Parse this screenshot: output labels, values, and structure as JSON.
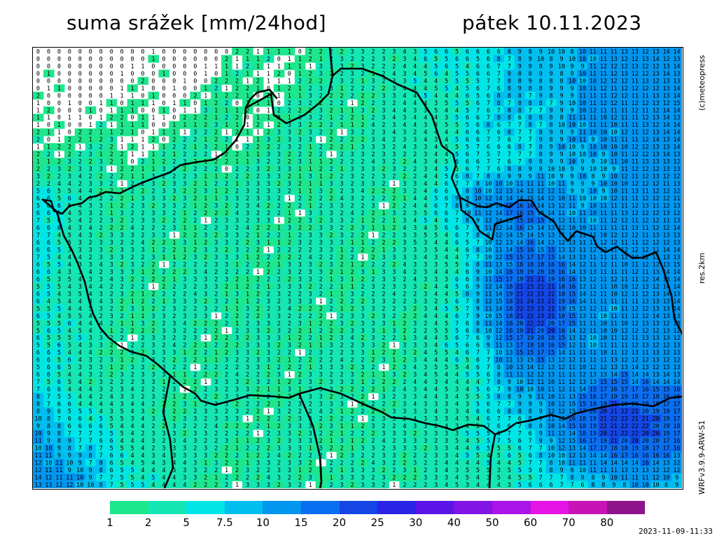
{
  "header": {
    "title": "suma srážek [mm/24hod]",
    "date": "pátek 10.11.2023"
  },
  "side_labels": {
    "copyright": "(c)meteopress",
    "resolution": "res.2km",
    "model": "WRFv3.9.9-ARW-S1"
  },
  "legend": {
    "labels": [
      "1",
      "2",
      "5",
      "7.5",
      "10",
      "15",
      "20",
      "25",
      "30",
      "40",
      "50",
      "60",
      "70",
      "80"
    ],
    "colors": [
      "#1ee68c",
      "#14e6b4",
      "#00e6e6",
      "#00bef0",
      "#0096f0",
      "#0a6ef0",
      "#1446e6",
      "#2a24e6",
      "#5a14e6",
      "#8214e6",
      "#aa14e6",
      "#e614e6",
      "#c814b4",
      "#8c148c"
    ]
  },
  "timestamp": "2023-11-09-11:33",
  "map": {
    "grid_cols": 62,
    "grid_rows": 60,
    "background": "#ffffff",
    "border_color": "#000000"
  }
}
